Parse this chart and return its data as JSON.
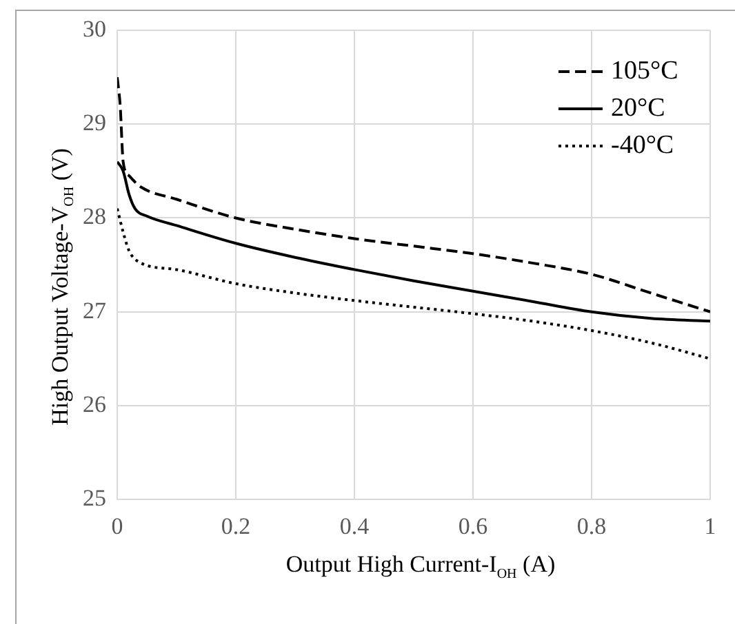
{
  "chart_data": {
    "type": "line",
    "xlabel": "Output High Current-I$_{OH}$ (A)",
    "ylabel": "High Output Voltage-V$_{OH}$ (V)",
    "xlim": [
      0,
      1
    ],
    "xticks": [
      0,
      0.2,
      0.4,
      0.6,
      0.8,
      1
    ],
    "ylim": [
      25,
      30
    ],
    "yticks": [
      25,
      26,
      27,
      28,
      29,
      30
    ],
    "grid": true,
    "legend": "top right",
    "marker": "none",
    "series": [
      {
        "name": "105°C",
        "color": "#000000",
        "line_style": "dashed",
        "x": [
          0,
          0.005,
          0.01,
          0.02,
          0.04,
          0.1,
          0.2,
          0.3,
          0.4,
          0.5,
          0.6,
          0.7,
          0.8,
          0.9,
          1
        ],
        "values": [
          29.5,
          29.2,
          28.6,
          28.45,
          28.33,
          28.2,
          28.0,
          27.88,
          27.78,
          27.7,
          27.62,
          27.52,
          27.4,
          27.2,
          27.0
        ]
      },
      {
        "name": "20°C",
        "color": "#000000",
        "line_style": "solid",
        "x": [
          0,
          0.01,
          0.02,
          0.03,
          0.05,
          0.1,
          0.2,
          0.3,
          0.4,
          0.5,
          0.6,
          0.7,
          0.8,
          0.9,
          1
        ],
        "values": [
          28.6,
          28.5,
          28.25,
          28.1,
          28.02,
          27.92,
          27.73,
          27.58,
          27.45,
          27.33,
          27.22,
          27.11,
          27.0,
          26.93,
          26.9
        ]
      },
      {
        "name": "-40°C",
        "color": "#000000",
        "line_style": "dotted",
        "x": [
          0,
          0.01,
          0.02,
          0.04,
          0.1,
          0.2,
          0.3,
          0.4,
          0.5,
          0.6,
          0.7,
          0.8,
          0.9,
          1
        ],
        "values": [
          28.1,
          27.85,
          27.65,
          27.52,
          27.45,
          27.3,
          27.2,
          27.12,
          27.05,
          26.98,
          26.9,
          26.8,
          26.67,
          26.5
        ]
      }
    ]
  }
}
